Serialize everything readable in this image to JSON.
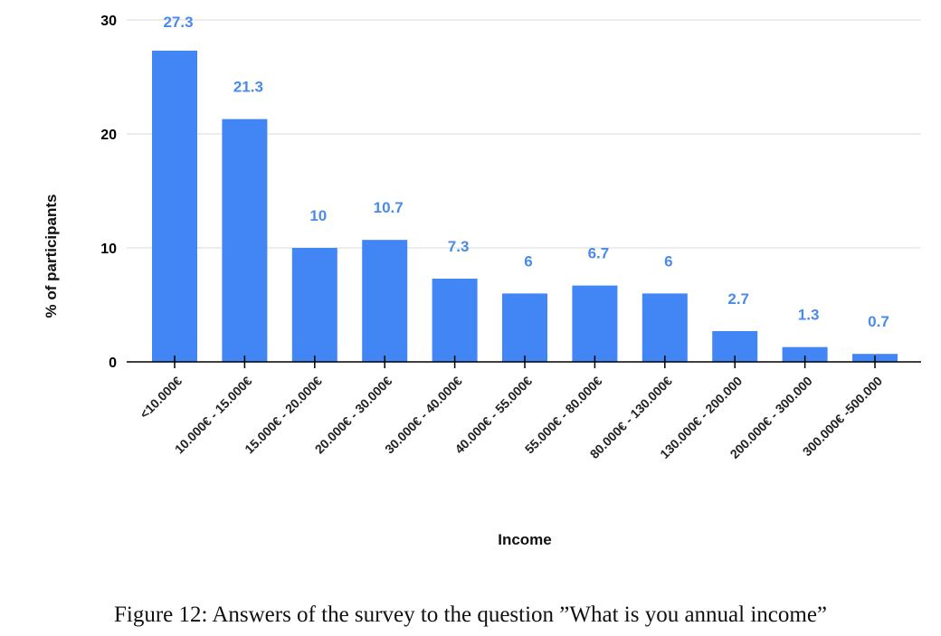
{
  "chart_data": {
    "type": "bar",
    "title": "",
    "xlabel": "Income",
    "ylabel": "% of participants",
    "categories": [
      "<10.000€",
      "10.000€ - 15.000€",
      "15.000€ - 20.000€",
      "20.000€ - 30.000€",
      "30.000€ - 40.000€",
      "40.000€ - 55.000€",
      "55.000€ - 80.000€",
      "80.000€ - 130.000€",
      "130.000€ - 200.000",
      "200.000€ - 300.000",
      "300.000€ -500.000"
    ],
    "values": [
      27.3,
      21.3,
      10,
      10.7,
      7.3,
      6,
      6.7,
      6,
      2.7,
      1.3,
      0.7
    ],
    "data_labels": [
      "27.3",
      "21.3",
      "10",
      "10.7",
      "7.3",
      "6",
      "6.7",
      "6",
      "2.7",
      "1.3",
      "0.7"
    ],
    "ylim": [
      0,
      30
    ],
    "yticks": [
      0,
      10,
      20,
      30
    ],
    "grid": true,
    "bar_color": "#4285f4",
    "label_color": "#4a8bea"
  },
  "caption": "Figure 12: Answers of the survey to the question ”What is you annual income”"
}
